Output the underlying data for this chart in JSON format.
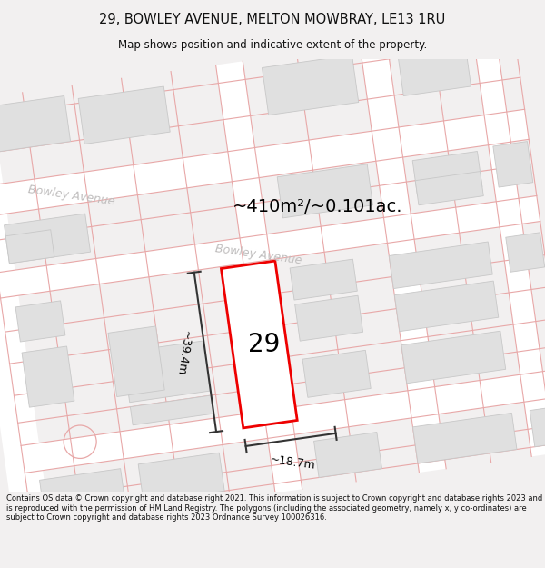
{
  "title_line1": "29, BOWLEY AVENUE, MELTON MOWBRAY, LE13 1RU",
  "title_line2": "Map shows position and indicative extent of the property.",
  "area_text": "~410m²/~0.101ac.",
  "label_29": "29",
  "dim_height": "~39.4m",
  "dim_width": "~18.7m",
  "street_name1": "Bowley Avenue",
  "street_name2": "Bowley Avenue",
  "footer_text": "Contains OS data © Crown copyright and database right 2021. This information is subject to Crown copyright and database rights 2023 and is reproduced with the permission of HM Land Registry. The polygons (including the associated geometry, namely x, y co-ordinates) are subject to Crown copyright and database rights 2023 Ordnance Survey 100026316.",
  "bg_color": "#f2f0f0",
  "map_bg": "#f2f0f0",
  "road_color": "#ffffff",
  "building_fill": "#e0e0e0",
  "building_edge": "#c8c8c8",
  "pink_color": "#e8a8a8",
  "red_color": "#ee0000",
  "dim_color": "#333333",
  "street_color": "#c0bebe",
  "title_color": "#111111",
  "footer_color": "#111111",
  "sep_color": "#cccccc",
  "title_fontsize": 10.5,
  "subtitle_fontsize": 8.5,
  "area_fontsize": 14,
  "street_fontsize": 9,
  "label29_fontsize": 20,
  "dim_fontsize": 9,
  "footer_fontsize": 6.0
}
